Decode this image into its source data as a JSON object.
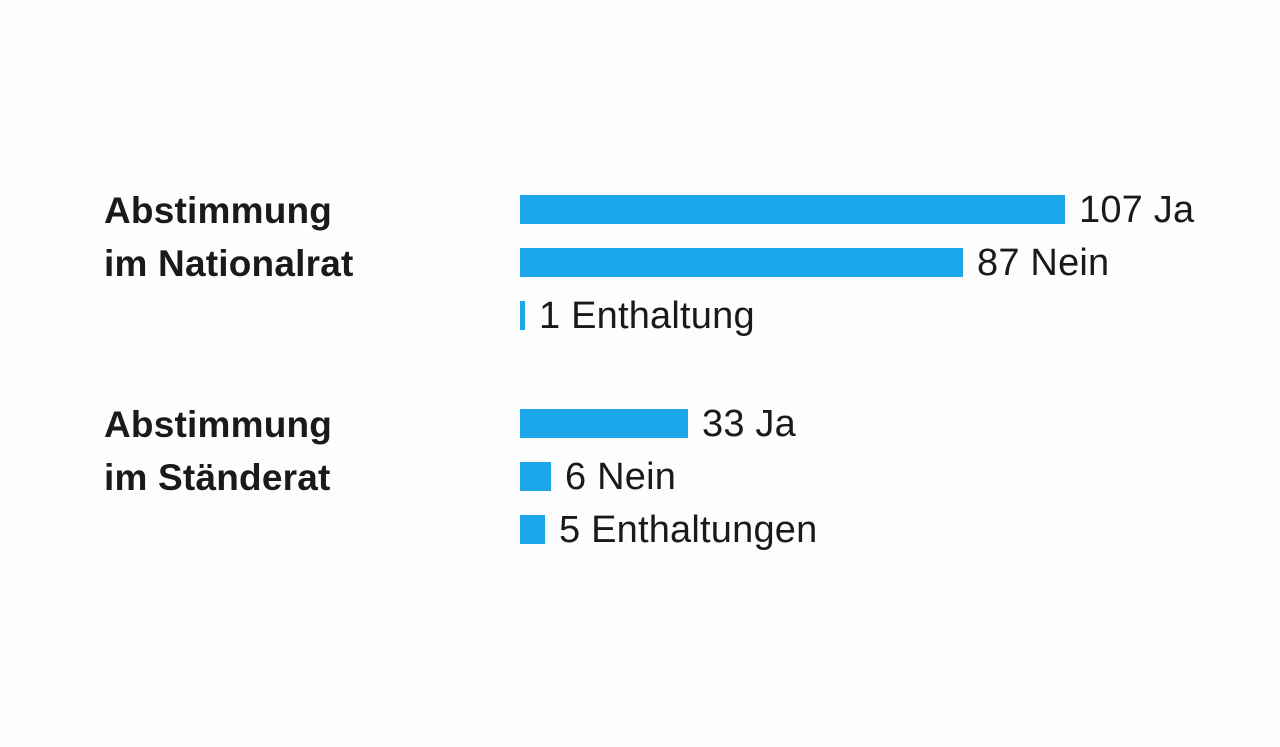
{
  "chart_data": [
    {
      "type": "bar",
      "orientation": "horizontal",
      "group_label_lines": [
        "Abstimmung",
        "im Nationalrat"
      ],
      "bars": [
        {
          "value": 107,
          "label": "107 Ja"
        },
        {
          "value": 87,
          "label": "87 Nein"
        },
        {
          "value": 1,
          "label": "1 Enthaltung"
        }
      ]
    },
    {
      "type": "bar",
      "orientation": "horizontal",
      "group_label_lines": [
        "Abstimmung",
        "im Ständerat"
      ],
      "bars": [
        {
          "value": 33,
          "label": "33 Ja"
        },
        {
          "value": 6,
          "label": "6 Nein"
        },
        {
          "value": 5,
          "label": "5 Enthaltungen"
        }
      ]
    }
  ],
  "style": {
    "bar_color": "#1BA7E9",
    "text_color": "#1a1a1a",
    "background_color": "#fdfdfd"
  }
}
